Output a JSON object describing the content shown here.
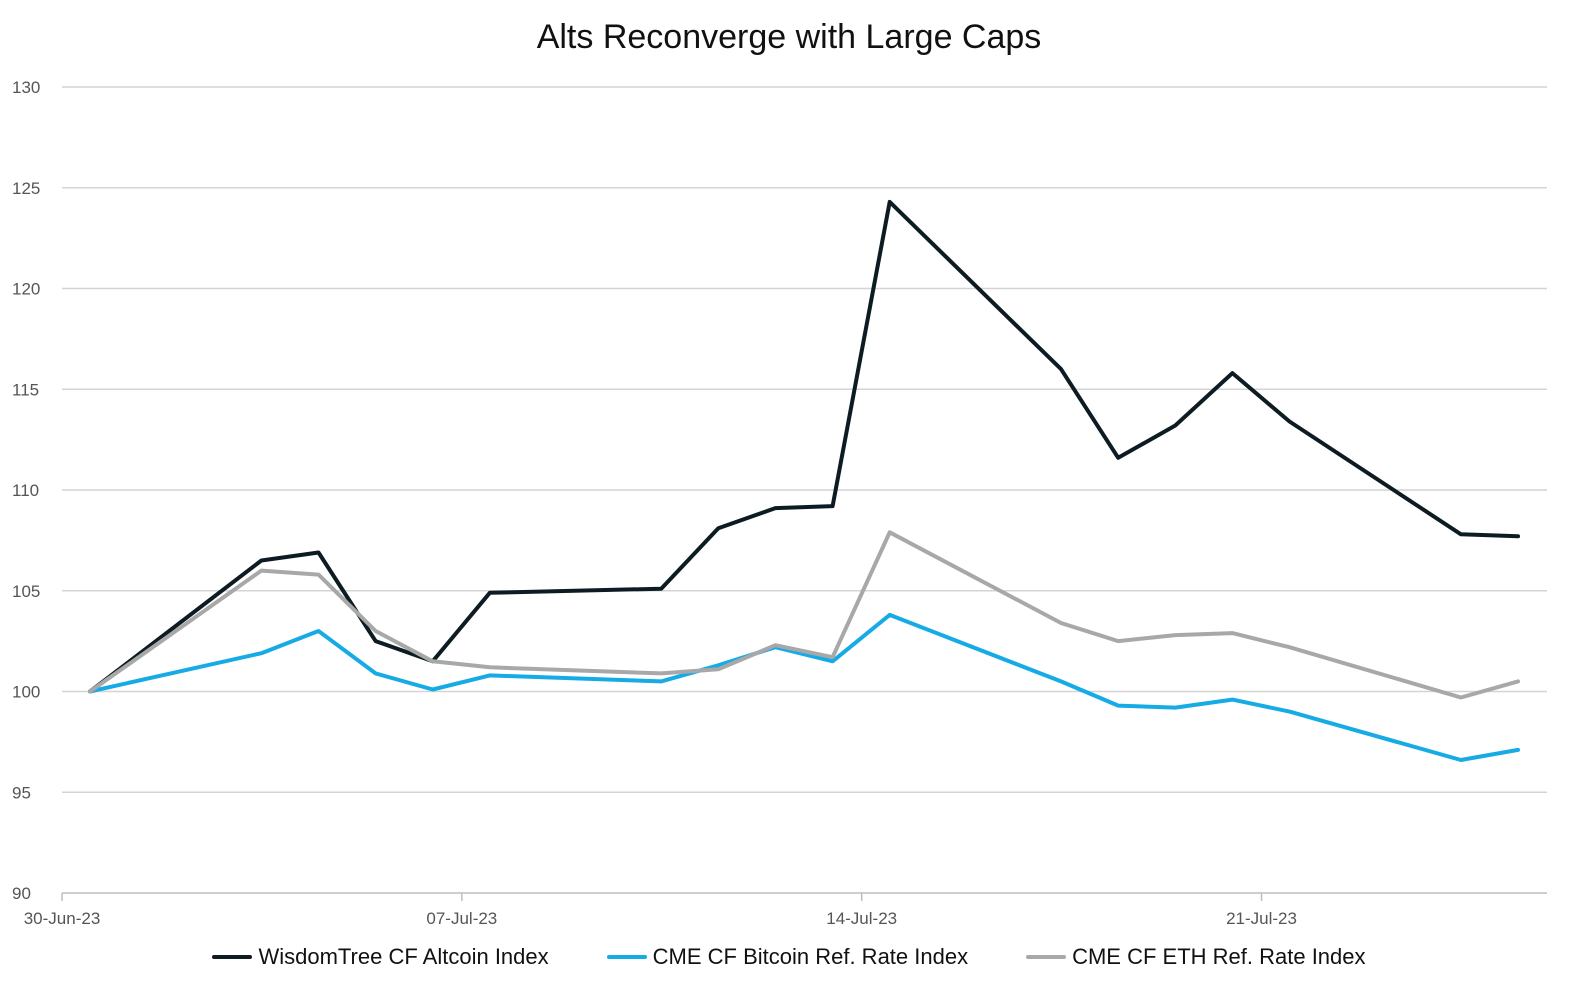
{
  "chart_data": {
    "type": "line",
    "title": "Alts Reconverge with Large Caps",
    "xlabel": "",
    "ylabel": "",
    "ylim": [
      90,
      130
    ],
    "yticks": [
      90,
      95,
      100,
      105,
      110,
      115,
      120,
      125,
      130
    ],
    "x": [
      "2023-06-30",
      "2023-07-03",
      "2023-07-04",
      "2023-07-05",
      "2023-07-06",
      "2023-07-07",
      "2023-07-10",
      "2023-07-11",
      "2023-07-12",
      "2023-07-13",
      "2023-07-14",
      "2023-07-17",
      "2023-07-18",
      "2023-07-19",
      "2023-07-20",
      "2023-07-21",
      "2023-07-24",
      "2023-07-25"
    ],
    "xticks": [
      {
        "date": "2023-06-30",
        "label": "30-Jun-23"
      },
      {
        "date": "2023-07-07",
        "label": "07-Jul-23"
      },
      {
        "date": "2023-07-14",
        "label": "14-Jul-23"
      },
      {
        "date": "2023-07-21",
        "label": "21-Jul-23"
      }
    ],
    "grid": true,
    "legend_position": "bottom",
    "series": [
      {
        "name": "WisdomTree CF Altcoin Index",
        "color": "#0d1b22",
        "values": [
          100.0,
          106.5,
          106.9,
          102.5,
          101.5,
          104.9,
          105.1,
          108.1,
          109.1,
          109.2,
          124.3,
          116.0,
          111.6,
          113.2,
          115.8,
          113.4,
          107.8,
          107.7
        ]
      },
      {
        "name": "CME CF Bitcoin Ref. Rate Index",
        "color": "#17abe6",
        "values": [
          100.0,
          101.9,
          103.0,
          100.9,
          100.1,
          100.8,
          100.5,
          101.3,
          102.2,
          101.5,
          103.8,
          100.5,
          99.3,
          99.2,
          99.6,
          99.0,
          96.6,
          97.1
        ]
      },
      {
        "name": "CME CF ETH Ref. Rate Index",
        "color": "#a8a8a8",
        "values": [
          100.0,
          106.0,
          105.8,
          103.0,
          101.5,
          101.2,
          100.9,
          101.1,
          102.3,
          101.7,
          107.9,
          103.4,
          102.5,
          102.8,
          102.9,
          102.2,
          99.7,
          100.5
        ]
      }
    ]
  }
}
